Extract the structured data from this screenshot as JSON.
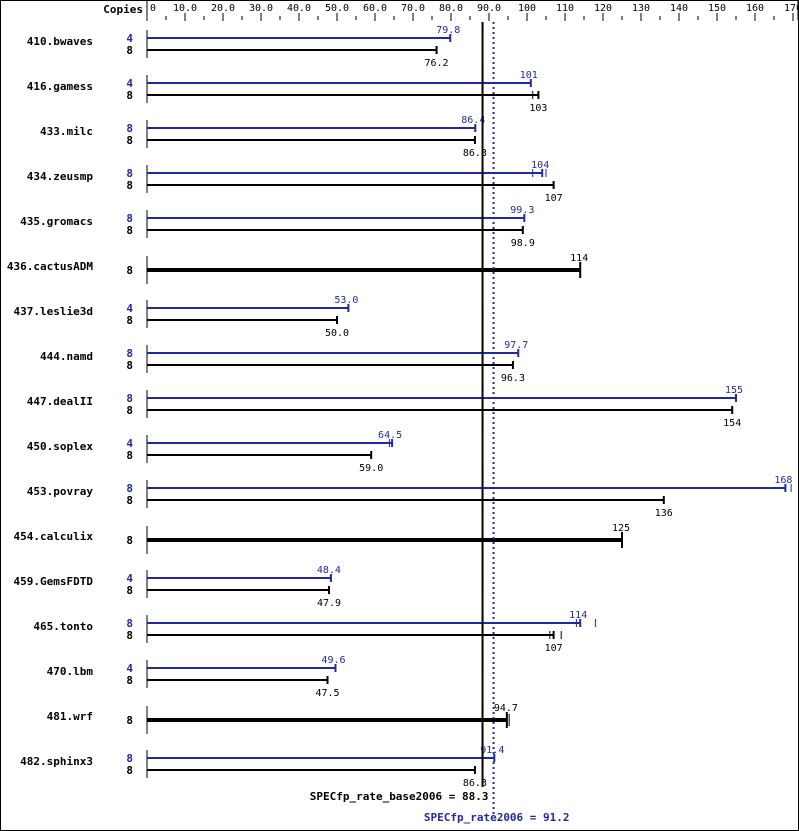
{
  "chart_data": {
    "type": "bar",
    "orientation": "horizontal",
    "title": "",
    "xlabel": "",
    "ylabel": "",
    "copies_header": "Copies",
    "xlim": [
      0,
      170
    ],
    "ticks": [
      {
        "v": 0,
        "label": "0"
      },
      {
        "v": 10,
        "label": "10.0"
      },
      {
        "v": 20,
        "label": "20.0"
      },
      {
        "v": 30,
        "label": "30.0"
      },
      {
        "v": 40,
        "label": "40.0"
      },
      {
        "v": 50,
        "label": "50.0"
      },
      {
        "v": 60,
        "label": "60.0"
      },
      {
        "v": 70,
        "label": "70.0"
      },
      {
        "v": 80,
        "label": "80.0"
      },
      {
        "v": 90,
        "label": "90.0"
      },
      {
        "v": 100,
        "label": "100"
      },
      {
        "v": 110,
        "label": "110"
      },
      {
        "v": 120,
        "label": "120"
      },
      {
        "v": 130,
        "label": "130"
      },
      {
        "v": 140,
        "label": "140"
      },
      {
        "v": 150,
        "label": "150"
      },
      {
        "v": 160,
        "label": "160"
      },
      {
        "v": 170,
        "label": "170"
      }
    ],
    "series": [
      {
        "name": "peak",
        "color": "#1f2aa0"
      },
      {
        "name": "base",
        "color": "#000000"
      }
    ],
    "reference_lines": [
      {
        "name": "base",
        "value": 88.3,
        "label": "SPECfp_rate_base2006 = 88.3",
        "color": "#000000",
        "style": "solid"
      },
      {
        "name": "peak",
        "value": 91.2,
        "label": "SPECfp_rate2006 = 91.2",
        "color": "#1f2aa0",
        "style": "dotted"
      }
    ],
    "benchmarks": [
      {
        "name": "410.bwaves",
        "peak": {
          "copies": "4",
          "value": 79.8,
          "label": "79.8"
        },
        "base": {
          "copies": "8",
          "value": 76.2,
          "label": "76.2"
        }
      },
      {
        "name": "416.gamess",
        "peak": {
          "copies": "4",
          "value": 101,
          "label": "101"
        },
        "base": {
          "copies": "8",
          "value": 103,
          "label": "103",
          "extra_ticks": [
            101.5
          ]
        }
      },
      {
        "name": "433.milc",
        "peak": {
          "copies": "8",
          "value": 86.4,
          "label": "86.4"
        },
        "base": {
          "copies": "8",
          "value": 86.3,
          "label": "86.3"
        }
      },
      {
        "name": "434.zeusmp",
        "peak": {
          "copies": "8",
          "value": 104,
          "label": "104",
          "extra_ticks": [
            101.5,
            105
          ]
        },
        "base": {
          "copies": "8",
          "value": 107,
          "label": "107"
        }
      },
      {
        "name": "435.gromacs",
        "peak": {
          "copies": "8",
          "value": 99.3,
          "label": "99.3"
        },
        "base": {
          "copies": "8",
          "value": 98.9,
          "label": "98.9"
        }
      },
      {
        "name": "436.cactusADM",
        "combined": {
          "copies": "8",
          "value": 114,
          "label": "114"
        }
      },
      {
        "name": "437.leslie3d",
        "peak": {
          "copies": "4",
          "value": 53.0,
          "label": "53.0"
        },
        "base": {
          "copies": "8",
          "value": 50.0,
          "label": "50.0"
        }
      },
      {
        "name": "444.namd",
        "peak": {
          "copies": "8",
          "value": 97.7,
          "label": "97.7"
        },
        "base": {
          "copies": "8",
          "value": 96.3,
          "label": "96.3"
        }
      },
      {
        "name": "447.dealII",
        "peak": {
          "copies": "8",
          "value": 155,
          "label": "155"
        },
        "base": {
          "copies": "8",
          "value": 154,
          "label": "154"
        }
      },
      {
        "name": "450.soplex",
        "peak": {
          "copies": "4",
          "value": 64.5,
          "label": "64.5",
          "extra_ticks": [
            63.8
          ]
        },
        "base": {
          "copies": "8",
          "value": 59.0,
          "label": "59.0"
        }
      },
      {
        "name": "453.povray",
        "peak": {
          "copies": "8",
          "value": 168,
          "label": "168",
          "extra_ticks": [
            169.5
          ]
        },
        "base": {
          "copies": "8",
          "value": 136,
          "label": "136"
        }
      },
      {
        "name": "454.calculix",
        "combined": {
          "copies": "8",
          "value": 125,
          "label": "125"
        }
      },
      {
        "name": "459.GemsFDTD",
        "peak": {
          "copies": "4",
          "value": 48.4,
          "label": "48.4"
        },
        "base": {
          "copies": "8",
          "value": 47.9,
          "label": "47.9"
        }
      },
      {
        "name": "465.tonto",
        "peak": {
          "copies": "8",
          "value": 114,
          "label": "114",
          "extra_ticks": [
            113,
            118
          ]
        },
        "base": {
          "copies": "8",
          "value": 107,
          "label": "107",
          "extra_ticks": [
            106,
            109
          ]
        }
      },
      {
        "name": "470.lbm",
        "peak": {
          "copies": "4",
          "value": 49.6,
          "label": "49.6"
        },
        "base": {
          "copies": "8",
          "value": 47.5,
          "label": "47.5"
        }
      },
      {
        "name": "481.wrf",
        "combined": {
          "copies": "8",
          "value": 94.7,
          "label": "94.7",
          "extra_ticks": [
            95.3
          ]
        }
      },
      {
        "name": "482.sphinx3",
        "peak": {
          "copies": "8",
          "value": 91.4,
          "label": "91.4"
        },
        "base": {
          "copies": "8",
          "value": 86.3,
          "label": "86.3"
        }
      }
    ]
  }
}
